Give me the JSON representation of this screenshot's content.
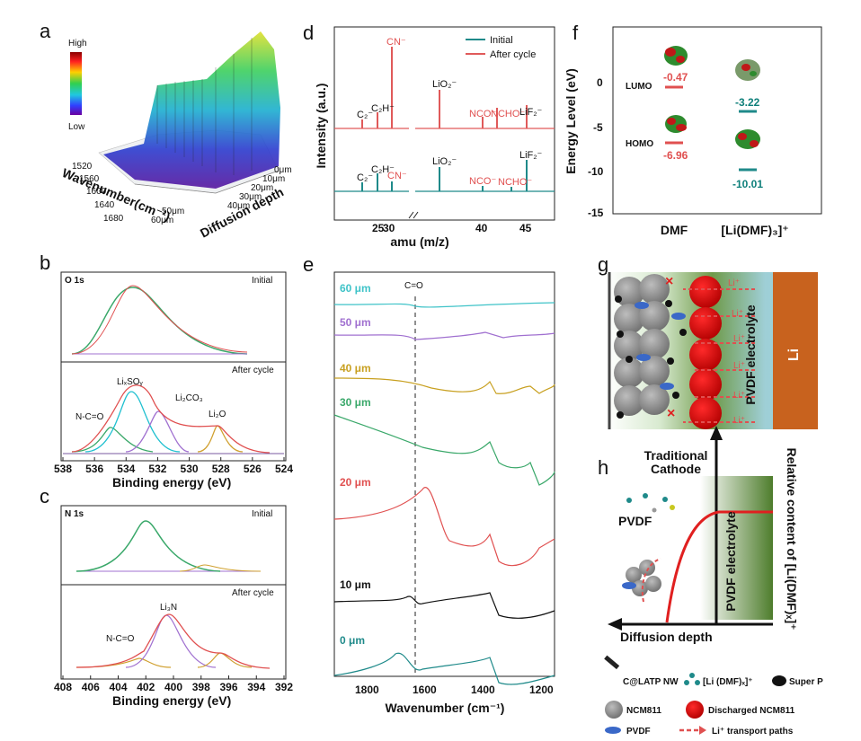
{
  "panel_labels": {
    "a": "a",
    "b": "b",
    "c": "c",
    "d": "d",
    "e": "e",
    "f": "f",
    "g": "g",
    "h": "h"
  },
  "panel_a": {
    "colorbar_high": "High",
    "colorbar_low": "Low",
    "wavenumber_label": "Wavenumber(cm⁻¹)",
    "depth_label": "Diffusion depth",
    "wavenumber_ticks": [
      "1520",
      "1560",
      "1600",
      "1640",
      "1680"
    ],
    "depth_ticks": [
      "0μm",
      "10μm",
      "20μm",
      "30μm",
      "40μm",
      "50μm",
      "60μm"
    ]
  },
  "panel_b": {
    "top_title": "O 1s",
    "top_tag": "Initial",
    "bottom_tag": "After cycle",
    "peaks": [
      "N-C=O",
      "LiₓSOᵧ",
      "Li₂CO₃",
      "Li₂O"
    ],
    "x_ticks": [
      "538",
      "536",
      "534",
      "532",
      "530",
      "528",
      "526",
      "524"
    ],
    "xlabel": "Binding energy (eV)"
  },
  "panel_c": {
    "top_title": "N 1s",
    "top_tag": "Initial",
    "bottom_tag": "After cycle",
    "peaks": [
      "N-C=O",
      "Li₃N"
    ],
    "x_ticks": [
      "408",
      "406",
      "404",
      "402",
      "400",
      "398",
      "396",
      "394",
      "392"
    ],
    "xlabel": "Binding energy (eV)"
  },
  "panel_d": {
    "ylabel": "Intensity (a.u.)",
    "xlabel": "amu (m/z)",
    "x_ticks": [
      "25",
      "30",
      "40",
      "45"
    ],
    "legend": [
      {
        "name": "Initial",
        "color": "#1f8a8a"
      },
      {
        "name": "After cycle",
        "color": "#e05a5a"
      }
    ],
    "labels_after": [
      "C₂⁻",
      "C₂H⁻",
      "CN⁻",
      "LiO₂⁻",
      "NCO⁻",
      "NCHO⁻",
      "LiF₂⁻"
    ],
    "labels_initial": [
      "C₂⁻",
      "C₂H⁻",
      "CN⁻",
      "LiO₂⁻",
      "NCO⁻",
      "NCHO⁻",
      "LiF₂⁻"
    ]
  },
  "panel_e": {
    "xlabel": "Wavenumber (cm⁻¹)",
    "x_ticks": [
      "1800",
      "1600",
      "1400",
      "1200"
    ],
    "marker": "C=O",
    "traces": [
      {
        "label": "60 μm",
        "color": "#3fc3c8"
      },
      {
        "label": "50 μm",
        "color": "#a070d0"
      },
      {
        "label": "40 μm",
        "color": "#c8a020"
      },
      {
        "label": "30 μm",
        "color": "#3aa86a"
      },
      {
        "label": "20 μm",
        "color": "#e05050"
      },
      {
        "label": "10 μm",
        "color": "#111111"
      },
      {
        "label": "0 μm",
        "color": "#1f8a8a"
      }
    ]
  },
  "panel_f": {
    "ylabel": "Energy Level (eV)",
    "y_ticks": [
      "0",
      "-5",
      "-10",
      "-15"
    ],
    "categories": [
      "DMF",
      "[Li(DMF)₃]⁺"
    ],
    "lumo_label": "LUMO",
    "homo_label": "HOMO",
    "values": {
      "dmf_lumo": "-0.47",
      "dmf_homo": "-6.96",
      "li_lumo": "-3.22",
      "li_homo": "-10.01"
    }
  },
  "panel_g": {
    "electrolyte": "PVDF electrolyte",
    "li": "Li",
    "ion_labels": [
      "Li⁺",
      "Li⁺",
      "Li⁺",
      "Li⁺",
      "Li⁺",
      "Li⁺"
    ]
  },
  "panel_h": {
    "cathode": "Traditional Cathode",
    "pvdf": "PVDF",
    "electrolyte": "PVDF electrolyte",
    "xlabel": "Diffusion depth",
    "ylabel": "Relative content of [Li(DMF)ₓ]⁺"
  },
  "legend": {
    "items": [
      "C@LATP NW",
      "[Li (DMF)ₓ]⁺",
      "Super P",
      "NCM811",
      "Discharged NCM811",
      "PVDF",
      "Li⁺ transport paths"
    ]
  }
}
